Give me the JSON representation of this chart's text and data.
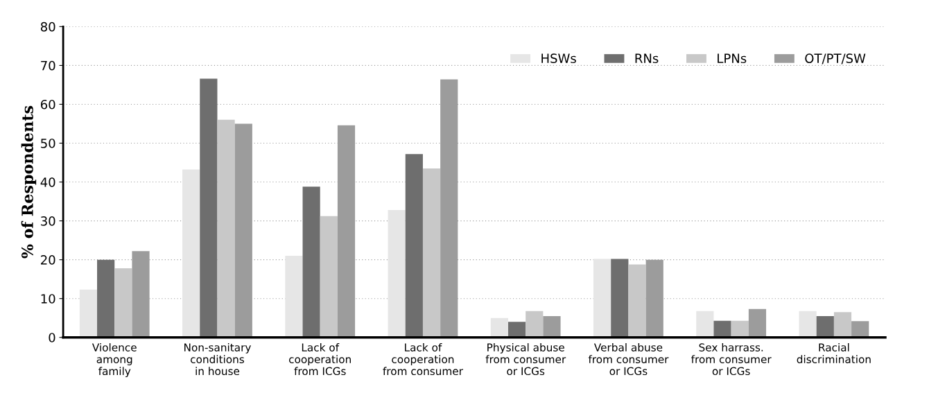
{
  "chart_data": {
    "type": "bar",
    "ylabel": "% of Respondents",
    "categories": [
      "Violence\namong\nfamily",
      "Non-sanitary\nconditions\nin house",
      "Lack of\ncooperation\nfrom ICGs",
      "Lack of\ncooperation\nfrom consumer",
      "Physical abuse\nfrom consumer\nor ICGs",
      "Verbal abuse\nfrom consumer\nor ICGs",
      "Sex harrass.\nfrom consumer\nor ICGs",
      "Racial\ndiscrimination"
    ],
    "series": [
      {
        "name": "HSWs",
        "color": "#e6e6e6",
        "values": [
          12.3,
          43.2,
          21,
          32.8,
          5,
          20.2,
          6.8,
          6.8
        ]
      },
      {
        "name": "RNs",
        "color": "#6e6e6e",
        "values": [
          20,
          66.6,
          38.8,
          47.2,
          4,
          20.2,
          4.3,
          5.5
        ]
      },
      {
        "name": "LPNs",
        "color": "#c8c8c8",
        "values": [
          17.8,
          56,
          31.2,
          43.5,
          6.8,
          18.8,
          4.3,
          6.5
        ]
      },
      {
        "name": "OT/PT/SW",
        "color": "#9c9c9c",
        "values": [
          22.2,
          55,
          54.6,
          66.4,
          5.5,
          20,
          7.3,
          4.2
        ]
      }
    ],
    "ylim": [
      0,
      80
    ],
    "yticks": [
      0,
      10,
      20,
      30,
      40,
      50,
      60,
      70,
      80
    ],
    "grid": "y",
    "legend": "top right"
  }
}
